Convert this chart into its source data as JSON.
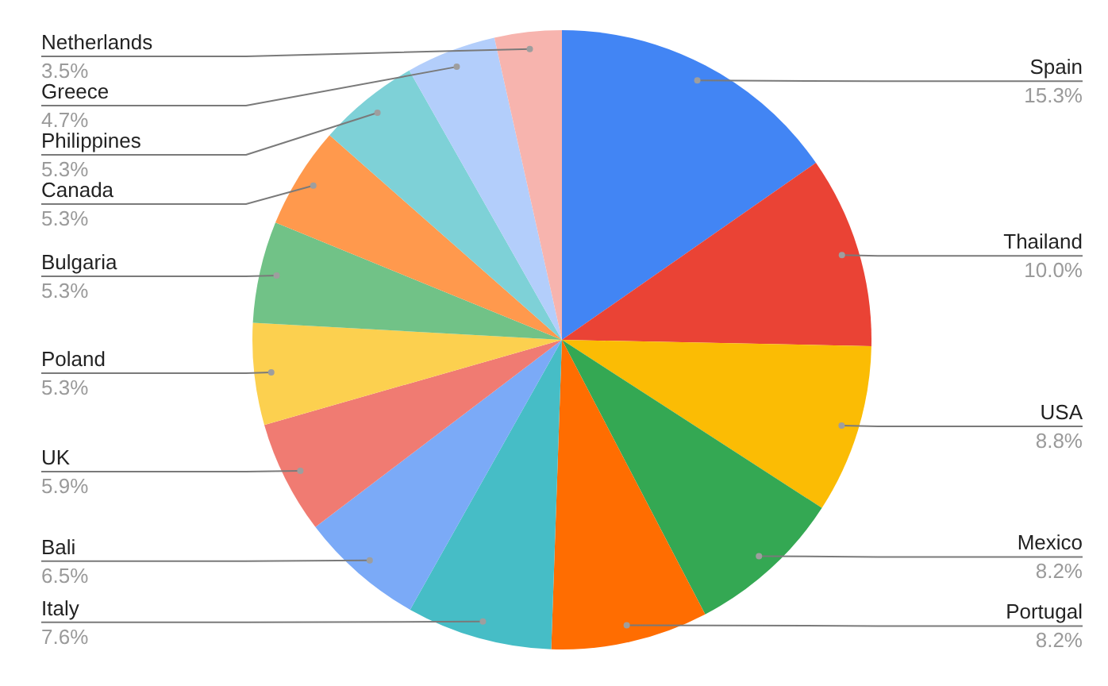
{
  "chart_data": {
    "type": "pie",
    "categories": [
      "Spain",
      "Thailand",
      "USA",
      "Mexico",
      "Portugal",
      "Italy",
      "Bali",
      "UK",
      "Poland",
      "Bulgaria",
      "Canada",
      "Philippines",
      "Greece",
      "Netherlands"
    ],
    "values": [
      15.3,
      10.0,
      8.8,
      8.2,
      8.2,
      7.6,
      6.5,
      5.9,
      5.3,
      5.3,
      5.3,
      5.3,
      4.7,
      3.5
    ],
    "colors": [
      "#4285f4",
      "#ea4335",
      "#fbbc04",
      "#34a853",
      "#ff6d01",
      "#46bdc6",
      "#7baaf7",
      "#f07b72",
      "#fcd04f",
      "#71c287",
      "#ff994d",
      "#7ed1d7",
      "#b3cefb",
      "#f7b4ae"
    ],
    "value_labels": [
      "15.3%",
      "10.0%",
      "8.8%",
      "8.2%",
      "8.2%",
      "7.6%",
      "6.5%",
      "5.9%",
      "5.3%",
      "5.3%",
      "5.3%",
      "5.3%",
      "4.7%",
      "3.5%"
    ]
  }
}
